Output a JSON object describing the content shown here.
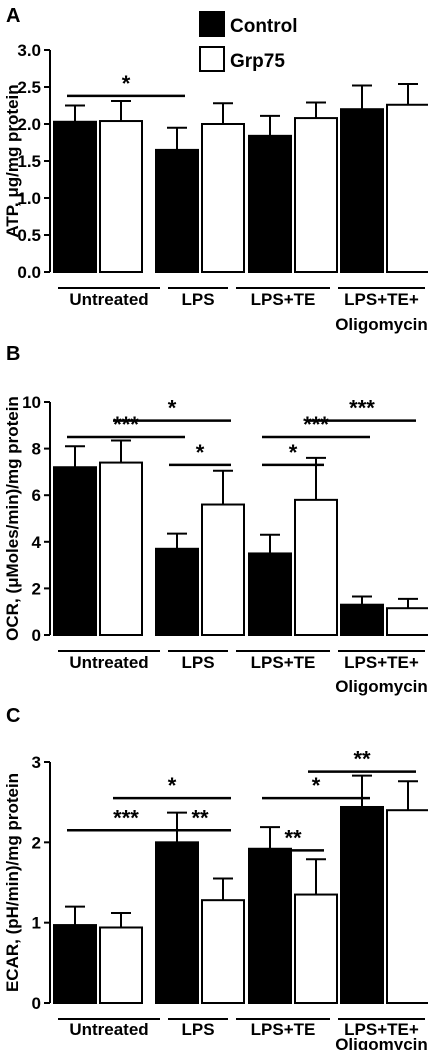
{
  "colors": {
    "control_fill": "#000000",
    "grp75_fill": "#ffffff",
    "stroke": "#000000"
  },
  "legend": {
    "items": [
      {
        "label": "Control",
        "fill": "#000000"
      },
      {
        "label": "Grp75",
        "fill": "#ffffff"
      }
    ]
  },
  "chart_data": [
    {
      "panel": "A",
      "type": "bar",
      "ylabel": "ATP, μg/mg protein",
      "categories": [
        "Untreated",
        "LPS",
        "LPS+TE",
        "LPS+TE+ Oligomycin"
      ],
      "ylim": [
        0,
        3.0
      ],
      "yticks": [
        0.0,
        0.5,
        1.0,
        1.5,
        2.0,
        2.5,
        3.0
      ],
      "ytick_labels": [
        "0.0",
        "0.5",
        "1.0",
        "1.5",
        "2.0",
        "2.5",
        "3.0"
      ],
      "series": [
        {
          "name": "Control",
          "values": [
            2.03,
            1.65,
            1.84,
            2.2
          ],
          "errors": [
            0.22,
            0.3,
            0.27,
            0.32
          ]
        },
        {
          "name": "Grp75",
          "values": [
            2.04,
            2.0,
            2.08,
            2.26
          ],
          "errors": [
            0.27,
            0.28,
            0.21,
            0.28
          ]
        }
      ],
      "significance": [
        {
          "label": "*",
          "y": 2.38,
          "from": [
            0,
            0
          ],
          "to": [
            1,
            0
          ]
        }
      ]
    },
    {
      "panel": "B",
      "type": "bar",
      "ylabel": "OCR, (μMoles/min)/mg protein",
      "categories": [
        "Untreated",
        "LPS",
        "LPS+TE",
        "LPS+TE+ Oligomycin"
      ],
      "ylim": [
        0,
        10
      ],
      "yticks": [
        0,
        2,
        4,
        6,
        8,
        10
      ],
      "ytick_labels": [
        "0",
        "2",
        "4",
        "6",
        "8",
        "10"
      ],
      "series": [
        {
          "name": "Control",
          "values": [
            7.2,
            3.7,
            3.5,
            1.3
          ],
          "errors": [
            0.9,
            0.65,
            0.8,
            0.35
          ]
        },
        {
          "name": "Grp75",
          "values": [
            7.4,
            5.6,
            5.8,
            1.15
          ],
          "errors": [
            0.95,
            1.45,
            1.8,
            0.4
          ]
        }
      ],
      "significance": [
        {
          "label": "***",
          "y": 8.5,
          "from": [
            0,
            0
          ],
          "to": [
            1,
            0
          ]
        },
        {
          "label": "*",
          "y": 9.2,
          "from": [
            0,
            1
          ],
          "to": [
            1,
            1
          ]
        },
        {
          "label": "*",
          "y": 7.3,
          "from": [
            1,
            0
          ],
          "to": [
            1,
            1
          ]
        },
        {
          "label": "*",
          "y": 7.3,
          "from": [
            2,
            0
          ],
          "to": [
            2,
            1
          ]
        },
        {
          "label": "***",
          "y": 8.5,
          "from": [
            2,
            0
          ],
          "to": [
            3,
            0
          ]
        },
        {
          "label": "***",
          "y": 9.2,
          "from": [
            2,
            1
          ],
          "to": [
            3,
            1
          ]
        }
      ]
    },
    {
      "panel": "C",
      "type": "bar",
      "ylabel": "ECAR, (pH/min)/mg protein",
      "categories": [
        "Untreated",
        "LPS",
        "LPS+TE",
        "LPS+TE+ Oligomycin"
      ],
      "ylim": [
        0,
        3
      ],
      "yticks": [
        0,
        1,
        2,
        3
      ],
      "ytick_labels": [
        "0",
        "1",
        "2",
        "3"
      ],
      "series": [
        {
          "name": "Control",
          "values": [
            0.97,
            2.0,
            1.92,
            2.44
          ],
          "errors": [
            0.23,
            0.37,
            0.27,
            0.39
          ]
        },
        {
          "name": "Grp75",
          "values": [
            0.94,
            1.28,
            1.35,
            2.4
          ],
          "errors": [
            0.18,
            0.27,
            0.44,
            0.36
          ]
        }
      ],
      "significance": [
        {
          "label": "***",
          "y": 2.15,
          "from": [
            0,
            0
          ],
          "to": [
            1,
            0
          ]
        },
        {
          "label": "*",
          "y": 2.55,
          "from": [
            0,
            1
          ],
          "to": [
            1,
            1
          ]
        },
        {
          "label": "**",
          "y": 2.15,
          "from": [
            1,
            0
          ],
          "to": [
            1,
            1
          ]
        },
        {
          "label": "**",
          "y": 1.9,
          "from": [
            2,
            0
          ],
          "to": [
            2,
            1
          ]
        },
        {
          "label": "*",
          "y": 2.55,
          "from": [
            2,
            0
          ],
          "to": [
            3,
            0
          ]
        },
        {
          "label": "**",
          "y": 2.88,
          "from": [
            2,
            1
          ],
          "to": [
            3,
            1
          ]
        }
      ]
    }
  ]
}
